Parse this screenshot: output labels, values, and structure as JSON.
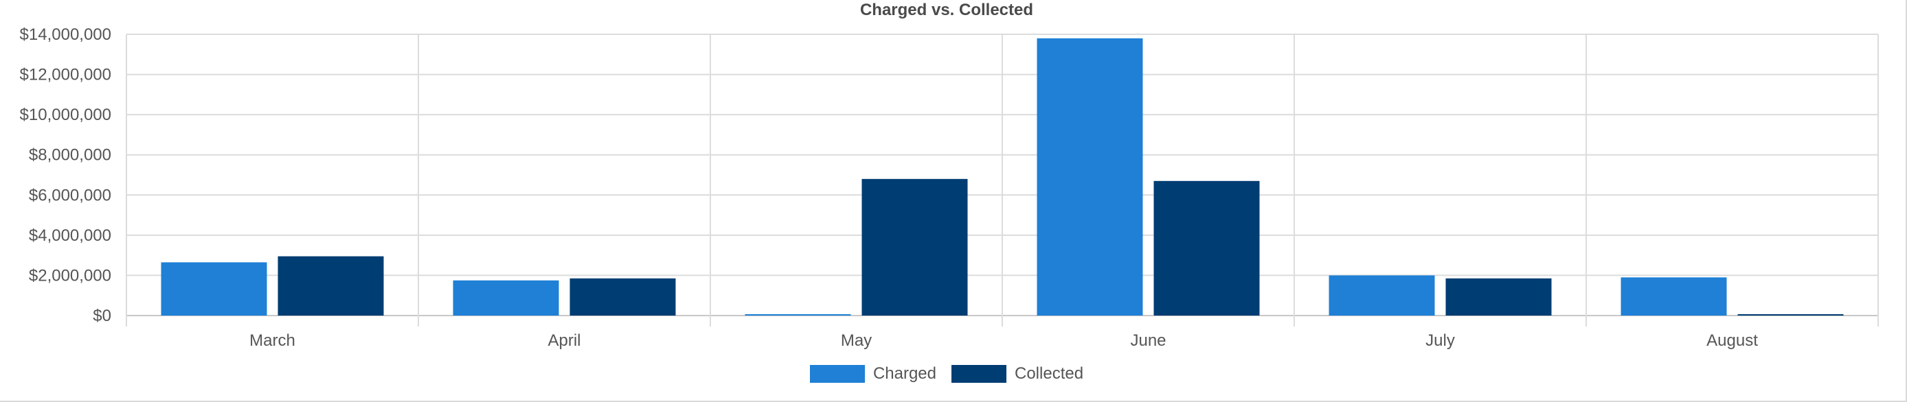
{
  "chart_data": {
    "type": "bar",
    "title": "Charged vs. Collected",
    "xlabel": "",
    "ylabel": "",
    "categories": [
      "March",
      "April",
      "May",
      "June",
      "July",
      "August"
    ],
    "series": [
      {
        "name": "Charged",
        "color": "#1f80d6",
        "values": [
          2650000,
          1750000,
          60000,
          13800000,
          2000000,
          1900000
        ]
      },
      {
        "name": "Collected",
        "color": "#003d73",
        "values": [
          2950000,
          1850000,
          6800000,
          6700000,
          1850000,
          40000
        ]
      }
    ],
    "ylim": [
      0,
      14000000
    ],
    "yticks": [
      0,
      2000000,
      4000000,
      6000000,
      8000000,
      10000000,
      12000000,
      14000000
    ],
    "ytick_labels": [
      "$0",
      "$2,000,000",
      "$4,000,000",
      "$6,000,000",
      "$8,000,000",
      "$10,000,000",
      "$12,000,000",
      "$14,000,000"
    ],
    "grid": true,
    "legend_position": "bottom-center"
  }
}
